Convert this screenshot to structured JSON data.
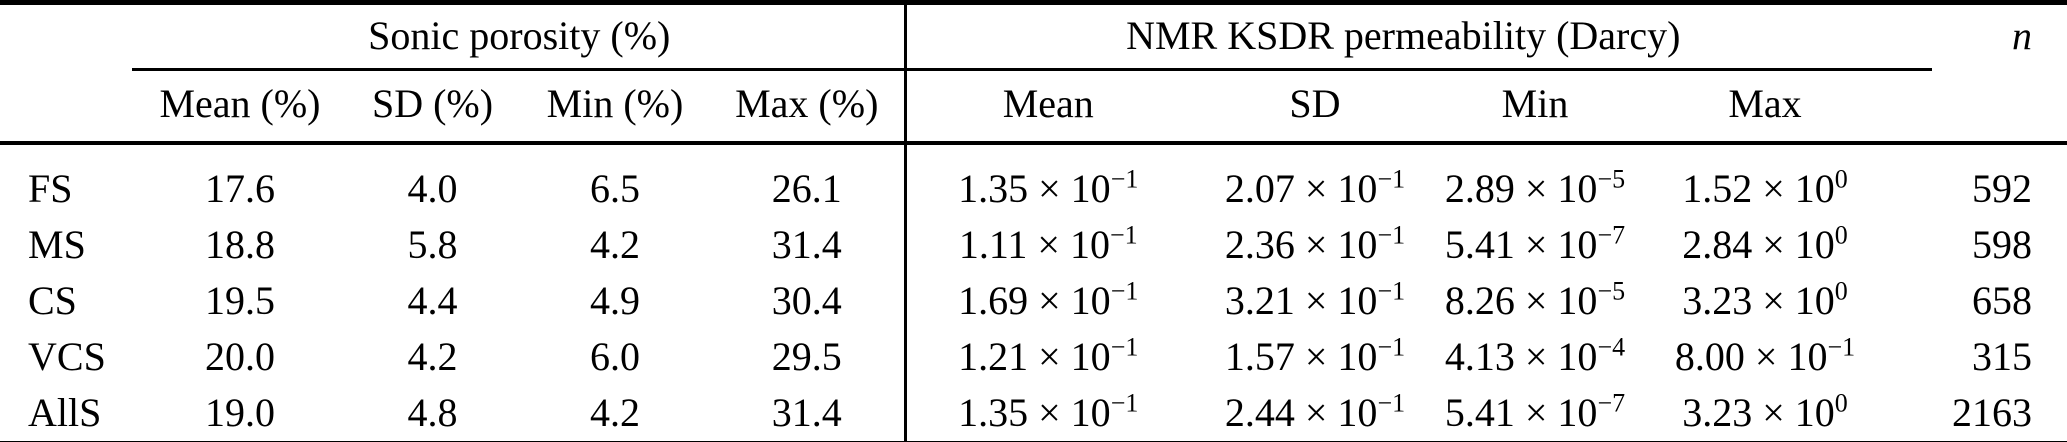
{
  "colors": {
    "background": "#ffffff",
    "text": "#000000",
    "rule": "#000000"
  },
  "table": {
    "group_headers": {
      "sonic": "Sonic porosity (%)",
      "nmr": "NMR KSDR permeability (Darcy)",
      "n": "n"
    },
    "sub_headers": [
      "Mean (%)",
      "SD (%)",
      "Min (%)",
      "Max (%)",
      "Mean",
      "SD",
      "Min",
      "Max"
    ],
    "rows": [
      {
        "label": "FS",
        "sonic": [
          "17.6",
          "4.0",
          "6.5",
          "26.1"
        ],
        "nmr": [
          "1.35 × 10^−1",
          "2.07 × 10^−1",
          "2.89 × 10^−5",
          "1.52 × 10^0"
        ],
        "n": "592"
      },
      {
        "label": "MS",
        "sonic": [
          "18.8",
          "5.8",
          "4.2",
          "31.4"
        ],
        "nmr": [
          "1.11 × 10^−1",
          "2.36 × 10^−1",
          "5.41 × 10^−7",
          "2.84 × 10^0"
        ],
        "n": "598"
      },
      {
        "label": "CS",
        "sonic": [
          "19.5",
          "4.4",
          "4.9",
          "30.4"
        ],
        "nmr": [
          "1.69 × 10^−1",
          "3.21 × 10^−1",
          "8.26 × 10^−5",
          "3.23 × 10^0"
        ],
        "n": "658"
      },
      {
        "label": "VCS",
        "sonic": [
          "20.0",
          "4.2",
          "6.0",
          "29.5"
        ],
        "nmr": [
          "1.21 × 10^−1",
          "1.57 × 10^−1",
          "4.13 × 10^−4",
          "8.00 × 10^−1"
        ],
        "n": "315"
      },
      {
        "label": "AllS",
        "sonic": [
          "19.0",
          "4.8",
          "4.2",
          "31.4"
        ],
        "nmr": [
          "1.35 × 10^−1",
          "2.44 × 10^−1",
          "5.41 × 10^−7",
          "3.23 × 10^0"
        ],
        "n": "2163"
      }
    ]
  }
}
